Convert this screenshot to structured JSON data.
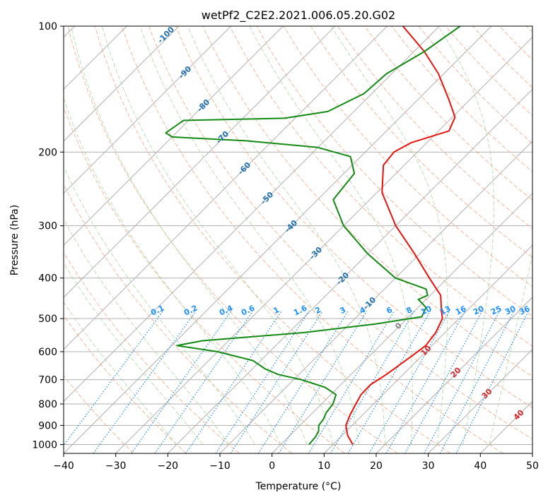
{
  "chart_data": {
    "type": "skew-t",
    "title": "wetPf2_C2E2.2021.006.05.20.G02",
    "xlabel": "Temperature (°C)",
    "ylabel": "Pressure (hPa)",
    "xlim": [
      -40,
      50
    ],
    "ylim": [
      1050,
      100
    ],
    "x_ticks": [
      -40,
      -30,
      -20,
      -10,
      0,
      10,
      20,
      30,
      40,
      50
    ],
    "y_ticks": [
      100,
      200,
      300,
      400,
      500,
      600,
      700,
      800,
      900,
      1000
    ],
    "colors": {
      "temperature": "#e8140c",
      "dewpoint": "#138a13",
      "isotherm": "#b0b0b0",
      "dry_adiabat": "#f4a582",
      "moist_adiabat": "#a8d8a0",
      "mixing_ratio": "#1e88e5",
      "dry_label": "#1f6fb0",
      "moist_label": "#d62728"
    },
    "series": [
      {
        "name": "Temperature",
        "points": [
          {
            "p": 1000,
            "t": 13.8
          },
          {
            "p": 950,
            "t": 11.0
          },
          {
            "p": 900,
            "t": 8.8
          },
          {
            "p": 850,
            "t": 7.6
          },
          {
            "p": 800,
            "t": 6.6
          },
          {
            "p": 760,
            "t": 5.8
          },
          {
            "p": 720,
            "t": 5.7
          },
          {
            "p": 680,
            "t": 6.8
          },
          {
            "p": 620,
            "t": 8.0
          },
          {
            "p": 580,
            "t": 8.8
          },
          {
            "p": 540,
            "t": 8.2
          },
          {
            "p": 500,
            "t": 6.8
          },
          {
            "p": 480,
            "t": 5.2
          },
          {
            "p": 440,
            "t": 2.0
          },
          {
            "p": 400,
            "t": -3.5
          },
          {
            "p": 350,
            "t": -11.0
          },
          {
            "p": 300,
            "t": -20.0
          },
          {
            "p": 250,
            "t": -29.0
          },
          {
            "p": 215,
            "t": -34.0
          },
          {
            "p": 200,
            "t": -34.5
          },
          {
            "p": 190,
            "t": -33.0
          },
          {
            "p": 178,
            "t": -28.0
          },
          {
            "p": 165,
            "t": -29.5
          },
          {
            "p": 150,
            "t": -34.0
          },
          {
            "p": 130,
            "t": -41.0
          },
          {
            "p": 115,
            "t": -48.0
          },
          {
            "p": 100,
            "t": -57.0
          }
        ]
      },
      {
        "name": "Dewpoint",
        "points": [
          {
            "p": 1000,
            "t": 5.4
          },
          {
            "p": 960,
            "t": 5.2
          },
          {
            "p": 930,
            "t": 4.7
          },
          {
            "p": 900,
            "t": 3.6
          },
          {
            "p": 870,
            "t": 3.3
          },
          {
            "p": 840,
            "t": 2.6
          },
          {
            "p": 800,
            "t": 2.2
          },
          {
            "p": 760,
            "t": 1.0
          },
          {
            "p": 730,
            "t": -2.5
          },
          {
            "p": 700,
            "t": -8.5
          },
          {
            "p": 680,
            "t": -14.0
          },
          {
            "p": 660,
            "t": -17.5
          },
          {
            "p": 630,
            "t": -21.5
          },
          {
            "p": 600,
            "t": -30.0
          },
          {
            "p": 580,
            "t": -39.0
          },
          {
            "p": 565,
            "t": -35.0
          },
          {
            "p": 540,
            "t": -17.0
          },
          {
            "p": 515,
            "t": -5.0
          },
          {
            "p": 495,
            "t": 2.5
          },
          {
            "p": 470,
            "t": 1.5
          },
          {
            "p": 450,
            "t": -1.5
          },
          {
            "p": 440,
            "t": -0.5
          },
          {
            "p": 425,
            "t": -2.0
          },
          {
            "p": 400,
            "t": -10.0
          },
          {
            "p": 350,
            "t": -20.0
          },
          {
            "p": 300,
            "t": -30.0
          },
          {
            "p": 260,
            "t": -37.0
          },
          {
            "p": 225,
            "t": -38.0
          },
          {
            "p": 205,
            "t": -42.0
          },
          {
            "p": 195,
            "t": -50.0
          },
          {
            "p": 188,
            "t": -65.0
          },
          {
            "p": 184,
            "t": -80.0
          },
          {
            "p": 180,
            "t": -82.0
          },
          {
            "p": 168,
            "t": -81.0
          },
          {
            "p": 166,
            "t": -62.0
          },
          {
            "p": 160,
            "t": -55.0
          },
          {
            "p": 145,
            "t": -51.5
          },
          {
            "p": 130,
            "t": -51.0
          },
          {
            "p": 115,
            "t": -48.0
          },
          {
            "p": 100,
            "t": -46.0
          }
        ]
      }
    ],
    "dry_adiabat_labels": [
      "-100",
      "-90",
      "-80",
      "-70",
      "-60",
      "-50",
      "-40",
      "-30",
      "-20",
      "-10",
      "0"
    ],
    "moist_adiabat_labels": [
      "10",
      "20",
      "30",
      "40"
    ],
    "mixing_ratio_labels": [
      "0.1",
      "0.2",
      "0.4",
      "0.6",
      "1",
      "1.6",
      "2",
      "3",
      "4",
      "6",
      "8",
      "10",
      "13",
      "16",
      "20",
      "25",
      "30",
      "36"
    ]
  }
}
